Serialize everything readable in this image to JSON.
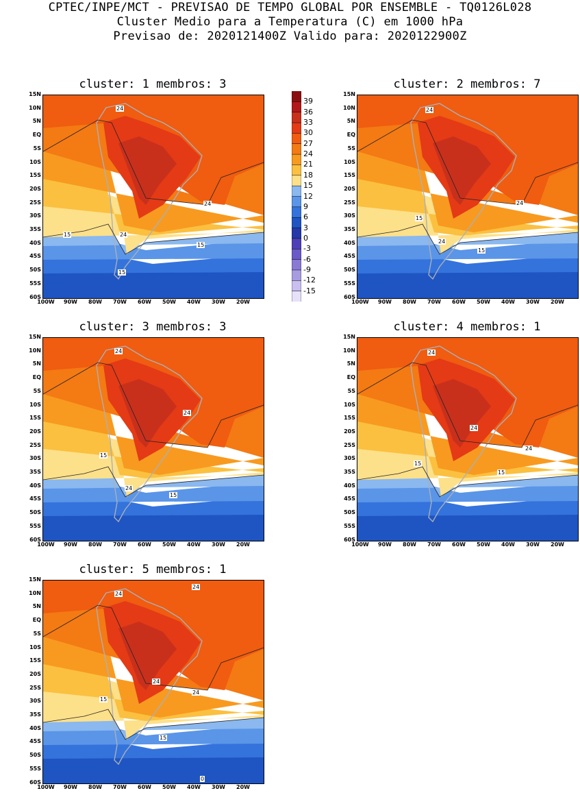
{
  "header": {
    "line1": "CPTEC/INPE/MCT - PREVISAO DE TEMPO GLOBAL POR ENSEMBLE - TQ0126L028",
    "line2": "Cluster Medio para a Temperatura (C) em 1000 hPa",
    "line3": "Previsao de: 2020121400Z   Valido para: 2020122900Z"
  },
  "panels": [
    {
      "title": "cluster: 1  membros: 3",
      "labels": [
        "24",
        "24",
        "15",
        "24",
        "15",
        "15"
      ]
    },
    {
      "title": "cluster: 2  membros: 7",
      "labels": [
        "24",
        "15",
        "24",
        "24",
        "15"
      ]
    },
    {
      "title": "cluster: 3  membros: 3",
      "labels": [
        "24",
        "24",
        "15",
        "24",
        "15"
      ]
    },
    {
      "title": "cluster: 4  membros: 1",
      "labels": [
        "24",
        "24",
        "24",
        "15",
        "15"
      ]
    },
    {
      "title": "cluster: 5  membros: 1",
      "labels": [
        "24",
        "24",
        "24",
        "15",
        "24",
        "15",
        "0"
      ]
    }
  ],
  "lat_ticks": [
    "15N",
    "10N",
    "5N",
    "EQ",
    "5S",
    "10S",
    "15S",
    "20S",
    "25S",
    "30S",
    "35S",
    "40S",
    "45S",
    "50S",
    "55S",
    "60S"
  ],
  "lon_ticks": [
    "100W",
    "90W",
    "80W",
    "70W",
    "60W",
    "50W",
    "40W",
    "30W",
    "20W"
  ],
  "colorbar": {
    "labels": [
      "39",
      "36",
      "33",
      "30",
      "27",
      "24",
      "21",
      "18",
      "15",
      "12",
      "9",
      "6",
      "3",
      "0",
      "-3",
      "-6",
      "-9",
      "-12",
      "-15"
    ],
    "colors": [
      "#8b0f0f",
      "#b21818",
      "#c8301c",
      "#e43a16",
      "#f05c10",
      "#f47a14",
      "#f89a20",
      "#fbc040",
      "#fde08a",
      "#8ab8ef",
      "#5a95e8",
      "#3473dc",
      "#1f55c2",
      "#2438a8",
      "#4e3fb8",
      "#6a5ac8",
      "#8a7ad4",
      "#a89ce0",
      "#c9bff0",
      "#e6e0f8"
    ],
    "unit": "C"
  }
}
